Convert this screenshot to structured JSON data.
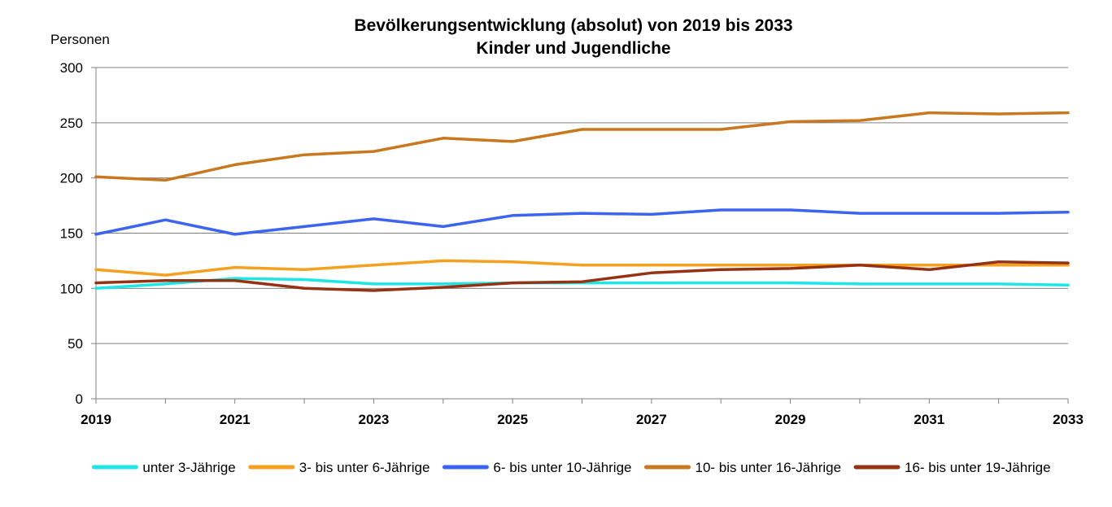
{
  "chart_data": {
    "type": "line",
    "title": "Bevölkerungsentwicklung (absolut) von 2019 bis 2033",
    "subtitle": "Kinder und Jugendliche",
    "ylabel": "Personen",
    "ylim": [
      0,
      300
    ],
    "yticks": [
      0,
      50,
      100,
      150,
      200,
      250,
      300
    ],
    "x": [
      2019,
      2020,
      2021,
      2022,
      2023,
      2024,
      2025,
      2026,
      2027,
      2028,
      2029,
      2030,
      2031,
      2032,
      2033
    ],
    "xtick_labels": [
      "2019",
      "2021",
      "2023",
      "2025",
      "2027",
      "2029",
      "2031",
      "2033"
    ],
    "grid": "horizontal",
    "legend_position": "bottom",
    "series": [
      {
        "name": "unter 3-Jährige",
        "color": "#1EE6E6",
        "values": [
          100,
          104,
          109,
          108,
          104,
          104,
          105,
          105,
          105,
          105,
          105,
          104,
          104,
          104,
          103
        ]
      },
      {
        "name": "3- bis unter 6-Jährige",
        "color": "#F5A01E",
        "values": [
          117,
          112,
          119,
          117,
          121,
          125,
          124,
          121,
          121,
          121,
          121,
          121,
          121,
          121,
          121
        ]
      },
      {
        "name": "6- bis unter 10-Jährige",
        "color": "#3C64F0",
        "values": [
          149,
          162,
          149,
          156,
          163,
          156,
          166,
          168,
          167,
          171,
          171,
          168,
          168,
          168,
          169
        ]
      },
      {
        "name": "10- bis unter 16-Jährige",
        "color": "#C8781E",
        "values": [
          201,
          198,
          212,
          221,
          224,
          236,
          233,
          244,
          244,
          244,
          251,
          252,
          259,
          258,
          259
        ]
      },
      {
        "name": "16- bis unter 19-Jährige",
        "color": "#963214",
        "values": [
          105,
          107,
          107,
          100,
          98,
          101,
          105,
          106,
          114,
          117,
          118,
          121,
          117,
          124,
          123
        ]
      }
    ]
  }
}
